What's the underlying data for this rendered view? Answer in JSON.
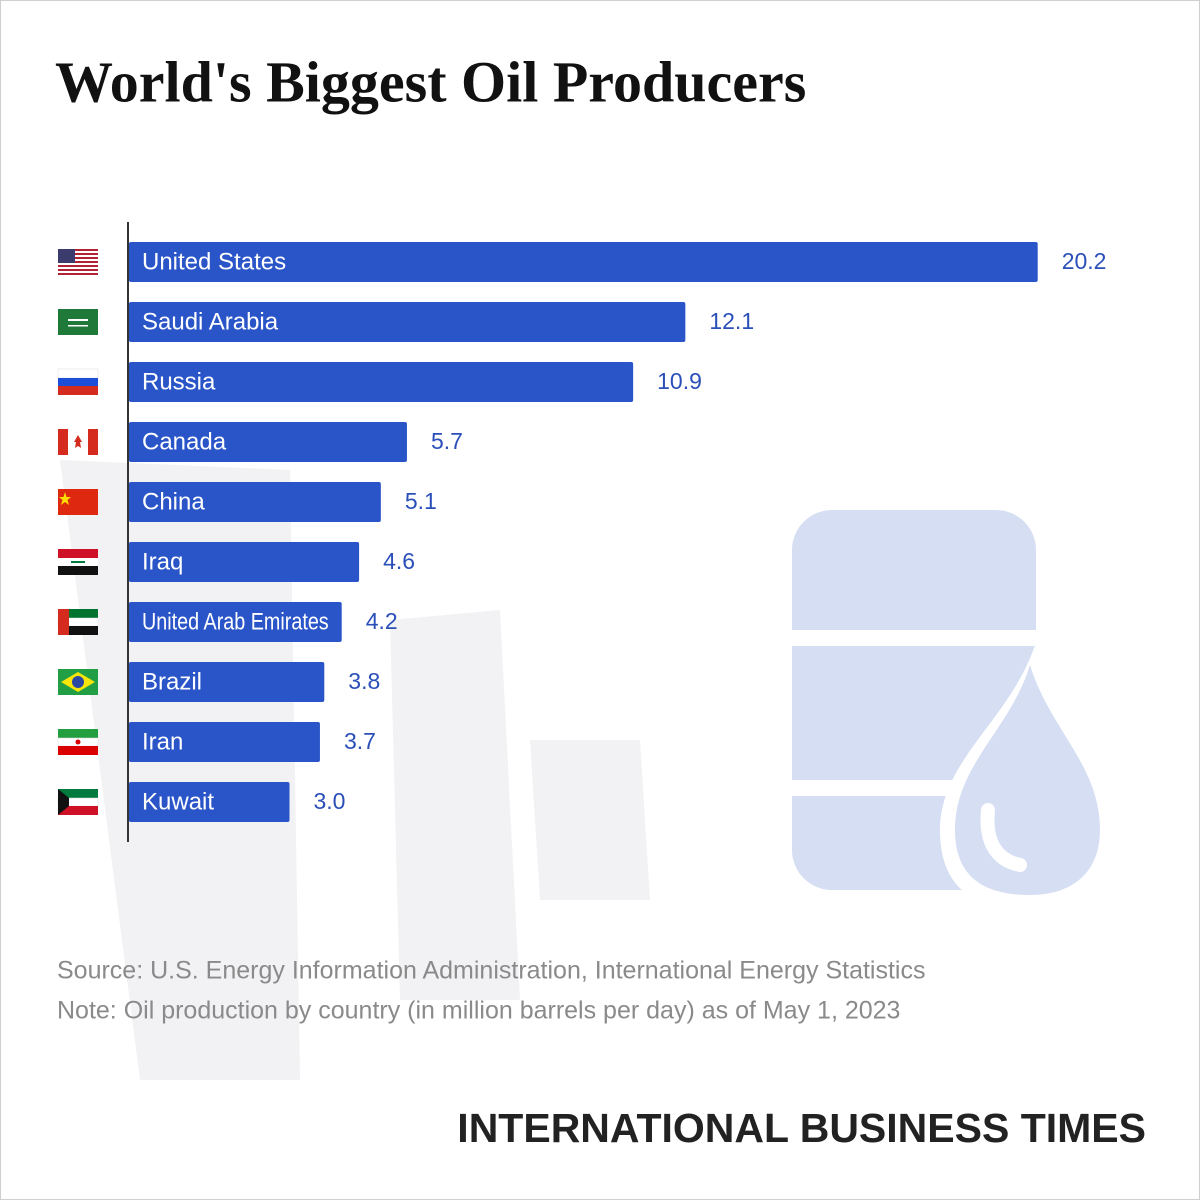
{
  "chart_data": {
    "type": "bar",
    "orientation": "horizontal",
    "title": "World's Biggest Oil Producers",
    "categories": [
      "United States",
      "Saudi Arabia",
      "Russia",
      "Canada",
      "China",
      "Iraq",
      "United Arab Emirates",
      "Brazil",
      "Iran",
      "Kuwait"
    ],
    "values": [
      20.2,
      12.1,
      10.9,
      5.7,
      5.1,
      4.6,
      4.2,
      3.8,
      3.7,
      3.0
    ],
    "value_labels": [
      "20.2",
      "12.1",
      "10.9",
      "5.7",
      "5.1",
      "4.6",
      "4.2",
      "3.8",
      "3.7",
      "3.0"
    ],
    "color": "#2a55c8",
    "source": "Source: U.S. Energy Information Administration, International Energy Statistics",
    "note": "Note: Oil production by country (in million barrels per day) as of May 1, 2023",
    "publisher": "INTERNATIONAL BUSINESS TIMES"
  }
}
